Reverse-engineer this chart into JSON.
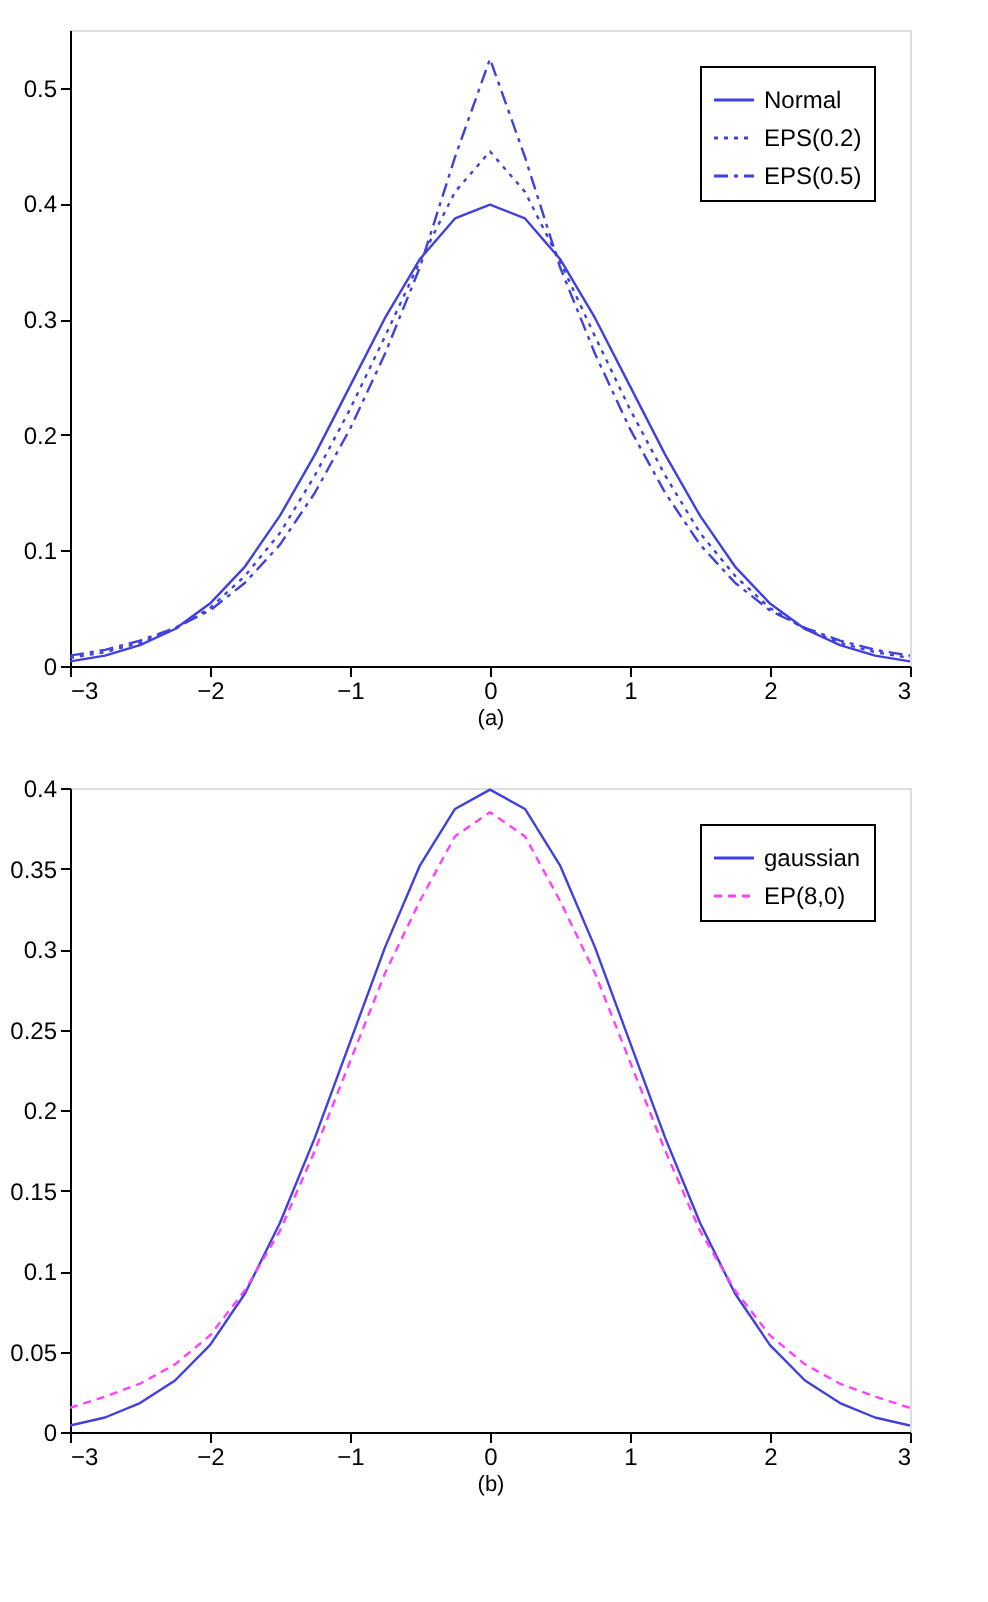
{
  "chart_data": [
    {
      "type": "line",
      "xlabel": "(a)",
      "xlim": [
        -3,
        3
      ],
      "xticks": [
        -3,
        -2,
        -1,
        0,
        1,
        2,
        3
      ],
      "ylim": [
        0,
        0.55
      ],
      "yticks": [
        0,
        0.1,
        0.2,
        0.3,
        0.4,
        0.5
      ],
      "grid": false,
      "legend": "top right",
      "marker": "none",
      "x": [
        -3,
        -2.75,
        -2.5,
        -2.25,
        -2,
        -1.75,
        -1.5,
        -1.25,
        -1,
        -0.75,
        -0.5,
        -0.25,
        0,
        0.25,
        0.5,
        0.75,
        1,
        1.25,
        1.5,
        1.75,
        2,
        2.25,
        2.5,
        2.75,
        3
      ],
      "series": [
        {
          "name": "Normal",
          "color": "#4040e0",
          "line_style": "solid",
          "values": [
            0.004,
            0.009,
            0.018,
            0.032,
            0.054,
            0.086,
            0.13,
            0.183,
            0.242,
            0.301,
            0.352,
            0.387,
            0.399,
            0.387,
            0.352,
            0.301,
            0.242,
            0.183,
            0.13,
            0.086,
            0.054,
            0.032,
            0.018,
            0.009,
            0.004
          ]
        },
        {
          "name": "EPS(0.2)",
          "color": "#4040e0",
          "line_style": "dotted",
          "values": [
            0.007,
            0.012,
            0.02,
            0.032,
            0.05,
            0.078,
            0.115,
            0.165,
            0.222,
            0.285,
            0.35,
            0.41,
            0.445,
            0.41,
            0.35,
            0.285,
            0.222,
            0.165,
            0.115,
            0.078,
            0.05,
            0.032,
            0.02,
            0.012,
            0.007
          ]
        },
        {
          "name": "EPS(0.5)",
          "color": "#4040e0",
          "line_style": "dashdot",
          "values": [
            0.009,
            0.014,
            0.022,
            0.033,
            0.048,
            0.072,
            0.105,
            0.15,
            0.205,
            0.27,
            0.345,
            0.44,
            0.525,
            0.44,
            0.345,
            0.27,
            0.205,
            0.15,
            0.105,
            0.072,
            0.048,
            0.033,
            0.022,
            0.014,
            0.009
          ]
        }
      ]
    },
    {
      "type": "line",
      "xlabel": "(b)",
      "xlim": [
        -3,
        3
      ],
      "xticks": [
        -3,
        -2,
        -1,
        0,
        1,
        2,
        3
      ],
      "ylim": [
        0,
        0.4
      ],
      "yticks": [
        0,
        0.05,
        0.1,
        0.15,
        0.2,
        0.25,
        0.3,
        0.35,
        0.4
      ],
      "grid": false,
      "legend": "top right",
      "marker": "none",
      "x": [
        -3,
        -2.75,
        -2.5,
        -2.25,
        -2,
        -1.75,
        -1.5,
        -1.25,
        -1,
        -0.75,
        -0.5,
        -0.25,
        0,
        0.25,
        0.5,
        0.75,
        1,
        1.25,
        1.5,
        1.75,
        2,
        2.25,
        2.5,
        2.75,
        3
      ],
      "series": [
        {
          "name": "gaussian",
          "color": "#4040e0",
          "line_style": "solid",
          "values": [
            0.004,
            0.009,
            0.018,
            0.032,
            0.054,
            0.086,
            0.13,
            0.183,
            0.242,
            0.301,
            0.352,
            0.387,
            0.399,
            0.387,
            0.352,
            0.301,
            0.242,
            0.183,
            0.13,
            0.086,
            0.054,
            0.032,
            0.018,
            0.009,
            0.004
          ]
        },
        {
          "name": "EP(8,0)",
          "color": "#ff40ff",
          "line_style": "dashed",
          "values": [
            0.015,
            0.022,
            0.03,
            0.042,
            0.06,
            0.088,
            0.125,
            0.175,
            0.23,
            0.285,
            0.33,
            0.37,
            0.385,
            0.37,
            0.33,
            0.285,
            0.23,
            0.175,
            0.125,
            0.088,
            0.06,
            0.042,
            0.03,
            0.022,
            0.015
          ]
        }
      ]
    }
  ]
}
